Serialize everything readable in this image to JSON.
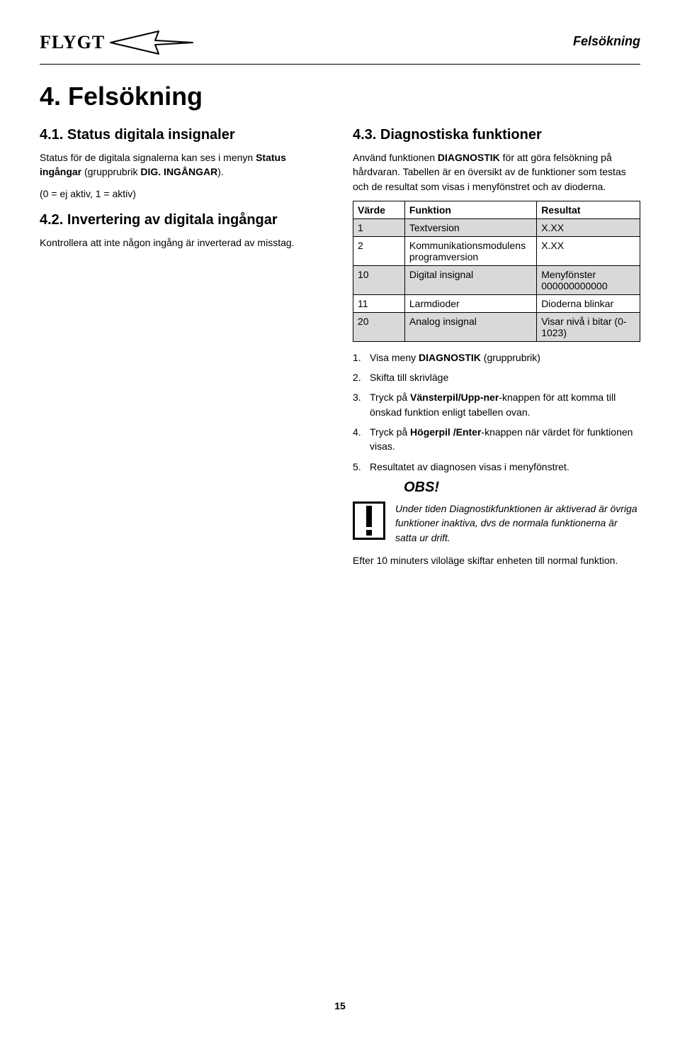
{
  "header": {
    "brand": "FLYGT",
    "section_label": "Felsökning"
  },
  "title": "4. Felsökning",
  "left": {
    "s41": {
      "heading": "4.1. Status digitala insignaler",
      "p1_a": "Status för de digitala signalerna kan ses i menyn ",
      "p1_b": "Status ingångar",
      "p1_c": " (grupprubrik ",
      "p1_d": "DIG. INGÅNGAR",
      "p1_e": ").",
      "p2": "(0 = ej aktiv, 1 = aktiv)"
    },
    "s42": {
      "heading": "4.2. Invertering av digitala ingångar",
      "p1": "Kontrollera att inte någon ingång är inverterad av misstag."
    }
  },
  "right": {
    "s43": {
      "heading": "4.3. Diagnostiska funktioner",
      "p1_a": "Använd funktionen ",
      "p1_b": "DIAGNOSTIK",
      "p1_c": " för att göra felsökning på hårdvaran. Tabellen är en översikt av de funktioner som testas och de resultat som  visas i menyfönstret och av dioderna.",
      "table": {
        "headers": [
          "Värde",
          "Funktion",
          "Resultat"
        ],
        "rows": [
          {
            "shaded": true,
            "cells": [
              "1",
              "Textversion",
              "X.XX"
            ]
          },
          {
            "shaded": false,
            "cells": [
              "2",
              "Kommunikationsmodulens programversion",
              "X.XX"
            ]
          },
          {
            "shaded": true,
            "cells": [
              "10",
              "Digital insignal",
              "Menyfönster 000000000000"
            ]
          },
          {
            "shaded": false,
            "cells": [
              "11",
              "Larmdioder",
              "Dioderna blinkar"
            ]
          },
          {
            "shaded": true,
            "cells": [
              "20",
              "Analog insignal",
              "Visar nivå i bitar (0-1023)"
            ]
          }
        ],
        "col_widths": [
          "18%",
          "46%",
          "36%"
        ],
        "shaded_bg": "#d9d9d9",
        "border_color": "#000000",
        "font_size": 14
      },
      "steps": {
        "1_a": "Visa meny ",
        "1_b": "DIAGNOSTIK",
        "1_c": " (grupprubrik)",
        "2": "Skifta till skrivläge",
        "3_a": "Tryck på ",
        "3_b": "Vänsterpil/Upp-ner",
        "3_c": "-knappen för att komma till önskad funktion enligt tabellen ovan.",
        "4_a": "Tryck på ",
        "4_b": "Högerpil /Enter",
        "4_c": "-knappen när värdet för funktionen visas.",
        "5": "Resultatet av diagnosen visas i menyfönstret."
      },
      "obs": {
        "heading": "OBS!",
        "note": "Under tiden Diagnostikfunktionen är aktiverad är övriga funktioner inaktiva, dvs de normala funktionerna är satta ur drift.",
        "after": "Efter 10 minuters viloläge skiftar enheten till normal funktion."
      }
    }
  },
  "page_number": "15"
}
